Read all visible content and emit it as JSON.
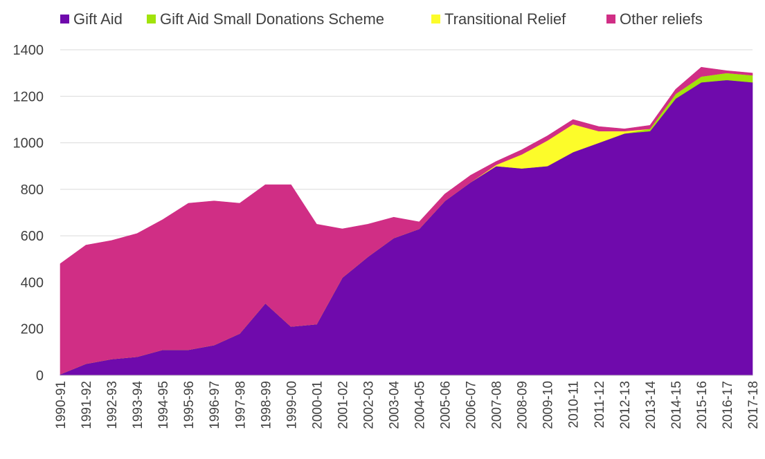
{
  "chart_data": {
    "type": "area",
    "stacked": true,
    "title": "",
    "xlabel": "",
    "ylabel": "",
    "ylim": [
      0,
      1400
    ],
    "yticks": [
      0,
      200,
      400,
      600,
      800,
      1000,
      1200,
      1400
    ],
    "grid": "horizontal",
    "legend_position": "top",
    "categories": [
      "1990-91",
      "1991-92",
      "1992-93",
      "1993-94",
      "1994-95",
      "1995-96",
      "1996-97",
      "1997-98",
      "1998-99",
      "1999-00",
      "2000-01",
      "2001-02",
      "2002-03",
      "2003-04",
      "2004-05",
      "2005-06",
      "2006-07",
      "2007-08",
      "2008-09",
      "2009-10",
      "2010-11",
      "2011-12",
      "2012-13",
      "2013-14",
      "2014-15",
      "2015-16",
      "2016-17",
      "2017-18"
    ],
    "series": [
      {
        "name": "Gift Aid",
        "color": "#6f0aac",
        "values": [
          5,
          50,
          70,
          80,
          110,
          110,
          130,
          180,
          310,
          210,
          220,
          420,
          510,
          590,
          630,
          750,
          830,
          900,
          890,
          900,
          960,
          1000,
          1040,
          1050,
          1190,
          1260,
          1270,
          1260
        ]
      },
      {
        "name": "Gift Aid Small Donations Scheme",
        "color": "#a1e30b",
        "values": [
          0,
          0,
          0,
          0,
          0,
          0,
          0,
          0,
          0,
          0,
          0,
          0,
          0,
          0,
          0,
          0,
          0,
          0,
          0,
          0,
          0,
          0,
          0,
          10,
          20,
          25,
          30,
          30
        ]
      },
      {
        "name": "Transitional Relief",
        "color": "#fcfc2a",
        "values": [
          0,
          0,
          0,
          0,
          0,
          0,
          0,
          0,
          0,
          0,
          0,
          0,
          0,
          0,
          0,
          0,
          0,
          5,
          60,
          110,
          120,
          50,
          10,
          0,
          0,
          0,
          0,
          0
        ]
      },
      {
        "name": "Other reliefs",
        "color": "#d02e85",
        "values": [
          475,
          510,
          510,
          530,
          560,
          630,
          620,
          560,
          510,
          610,
          430,
          210,
          140,
          90,
          30,
          30,
          30,
          15,
          20,
          20,
          20,
          20,
          10,
          15,
          20,
          40,
          10,
          10
        ]
      }
    ]
  }
}
